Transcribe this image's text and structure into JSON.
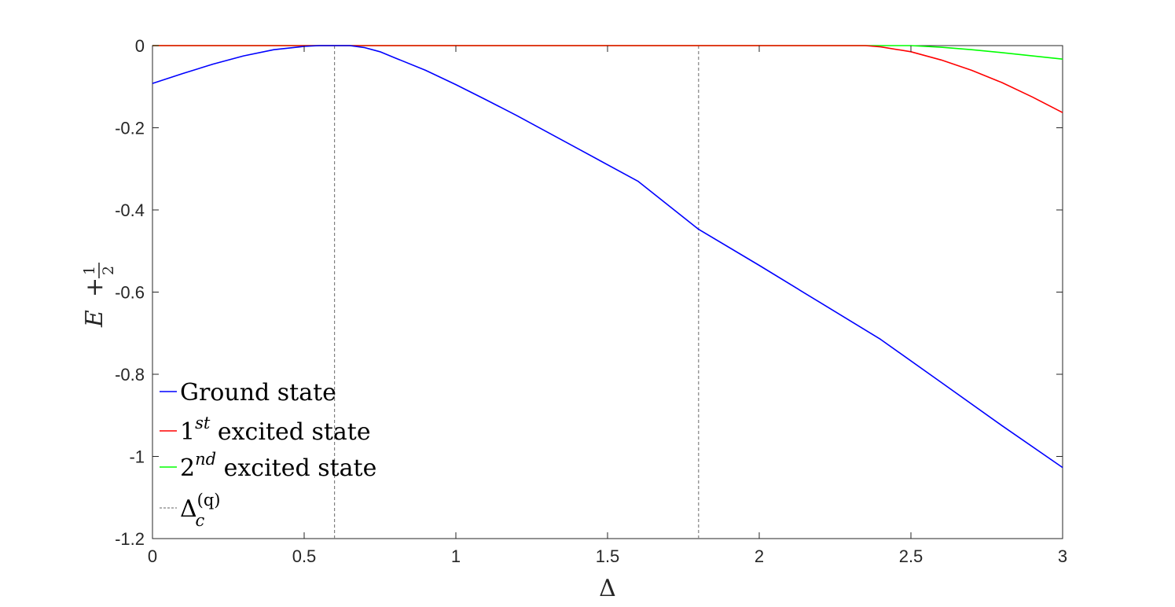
{
  "chart_data": {
    "type": "line",
    "xlabel": "Δ",
    "ylabel": "E + 1/2",
    "xlim": [
      0,
      3
    ],
    "ylim": [
      -1.2,
      0
    ],
    "xticks": [
      0,
      0.5,
      1,
      1.5,
      2,
      2.5,
      3
    ],
    "xtick_labels": [
      "0",
      "0.5",
      "1",
      "1.5",
      "2",
      "2.5",
      "3"
    ],
    "yticks": [
      -1.2,
      -1,
      -0.8,
      -0.6,
      -0.4,
      -0.2,
      0
    ],
    "ytick_labels": [
      "-1.2",
      "-1",
      "-0.8",
      "-0.6",
      "-0.4",
      "-0.2",
      "0"
    ],
    "grid": false,
    "legend_position": "bottom-left",
    "series": [
      {
        "name": "Ground state",
        "color": "#0000ff",
        "x": [
          0,
          0.1,
          0.2,
          0.3,
          0.4,
          0.5,
          0.55,
          0.6,
          0.65,
          0.7,
          0.75,
          0.8,
          0.9,
          1.0,
          1.1,
          1.2,
          1.4,
          1.6,
          1.8,
          2.0,
          2.2,
          2.4,
          2.6,
          2.8,
          3.0
        ],
        "y": [
          -0.092,
          -0.068,
          -0.045,
          -0.025,
          -0.01,
          -0.002,
          0,
          0,
          0,
          -0.005,
          -0.015,
          -0.03,
          -0.06,
          -0.095,
          -0.132,
          -0.17,
          -0.25,
          -0.33,
          -0.447,
          -0.535,
          -0.625,
          -0.715,
          -0.82,
          -0.925,
          -1.027
        ]
      },
      {
        "name": "1^st excited state",
        "color": "#ff0000",
        "x": [
          0,
          0.5,
          1.0,
          1.5,
          2.0,
          2.35,
          2.4,
          2.5,
          2.6,
          2.7,
          2.8,
          2.9,
          3.0
        ],
        "y": [
          0,
          0,
          0,
          0,
          0,
          0,
          -0.003,
          -0.015,
          -0.035,
          -0.06,
          -0.09,
          -0.125,
          -0.163
        ]
      },
      {
        "name": "2^nd excited state",
        "color": "#00ff00",
        "x": [
          0,
          0.5,
          1.0,
          1.5,
          2.0,
          2.5,
          2.6,
          2.7,
          2.8,
          2.9,
          3.0
        ],
        "y": [
          0,
          0,
          0,
          0,
          0,
          0,
          -0.004,
          -0.01,
          -0.017,
          -0.025,
          -0.033
        ]
      }
    ],
    "vlines": {
      "name": "Δ_c^(q)",
      "color": "#808080",
      "style": "dashed",
      "x": [
        0.6,
        1.8
      ]
    },
    "legend": [
      {
        "color": "#0000ff",
        "label": "Ground state"
      },
      {
        "color": "#ff0000",
        "base": "1",
        "sup": "st",
        "rest": " excited state"
      },
      {
        "color": "#00ff00",
        "base": "2",
        "sup": "nd",
        "rest": " excited state"
      },
      {
        "color": "#808080",
        "dashed": true,
        "base": "Δ",
        "sub": "c",
        "sup": "(q)"
      }
    ]
  }
}
